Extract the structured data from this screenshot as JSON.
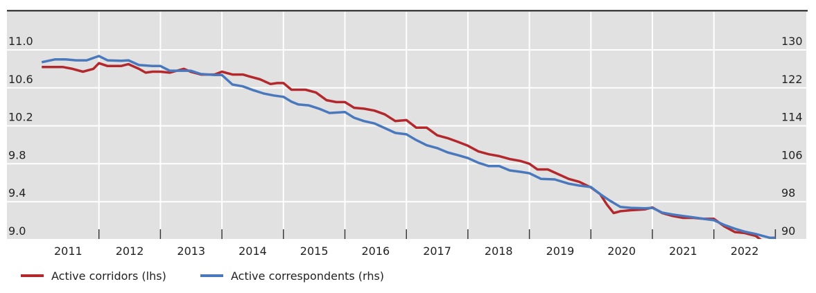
{
  "chart_data": {
    "type": "line",
    "title": "",
    "xlabel": "",
    "ylabel_left": "",
    "ylabel_right": "",
    "x_ticks": [
      "2011",
      "2012",
      "2013",
      "2014",
      "2015",
      "2016",
      "2017",
      "2018",
      "2019",
      "2020",
      "2021",
      "2022"
    ],
    "x_range": [
      2011.0,
      2023.0
    ],
    "y_left": {
      "ticks": [
        "9.0",
        "9.4",
        "9.8",
        "10.2",
        "10.6",
        "11.0"
      ],
      "range": [
        9.0,
        11.2
      ]
    },
    "y_right": {
      "ticks": [
        "90",
        "98",
        "106",
        "114",
        "122",
        "130"
      ],
      "range": [
        90,
        132
      ]
    },
    "grid": true,
    "legend_placement": "bottom",
    "colors": {
      "background": "#e1e1e1",
      "grid": "#ffffff",
      "corridors": "#b3282d",
      "correspondents": "#4a78bd"
    },
    "series": [
      {
        "name": "Active corridors (lhs)",
        "axis": "left",
        "points": [
          [
            2011.07,
            10.82
          ],
          [
            2011.26,
            10.82
          ],
          [
            2011.41,
            10.82
          ],
          [
            2011.57,
            10.8
          ],
          [
            2011.74,
            10.77
          ],
          [
            2011.91,
            10.8
          ],
          [
            2012.0,
            10.86
          ],
          [
            2012.14,
            10.83
          ],
          [
            2012.36,
            10.83
          ],
          [
            2012.48,
            10.85
          ],
          [
            2012.65,
            10.8
          ],
          [
            2012.76,
            10.76
          ],
          [
            2012.87,
            10.77
          ],
          [
            2013.0,
            10.77
          ],
          [
            2013.15,
            10.76
          ],
          [
            2013.38,
            10.8
          ],
          [
            2013.49,
            10.77
          ],
          [
            2013.66,
            10.74
          ],
          [
            2013.88,
            10.74
          ],
          [
            2014.0,
            10.77
          ],
          [
            2014.17,
            10.74
          ],
          [
            2014.34,
            10.74
          ],
          [
            2014.45,
            10.72
          ],
          [
            2014.62,
            10.69
          ],
          [
            2014.79,
            10.64
          ],
          [
            2014.9,
            10.65
          ],
          [
            2015.0,
            10.65
          ],
          [
            2015.13,
            10.58
          ],
          [
            2015.36,
            10.58
          ],
          [
            2015.53,
            10.55
          ],
          [
            2015.7,
            10.47
          ],
          [
            2015.86,
            10.45
          ],
          [
            2016.0,
            10.45
          ],
          [
            2016.15,
            10.39
          ],
          [
            2016.31,
            10.38
          ],
          [
            2016.48,
            10.36
          ],
          [
            2016.65,
            10.32
          ],
          [
            2016.82,
            10.25
          ],
          [
            2017.0,
            10.26
          ],
          [
            2017.16,
            10.18
          ],
          [
            2017.33,
            10.18
          ],
          [
            2017.5,
            10.1
          ],
          [
            2017.67,
            10.07
          ],
          [
            2017.84,
            10.03
          ],
          [
            2018.0,
            9.99
          ],
          [
            2018.17,
            9.93
          ],
          [
            2018.34,
            9.9
          ],
          [
            2018.51,
            9.88
          ],
          [
            2018.68,
            9.85
          ],
          [
            2018.85,
            9.83
          ],
          [
            2019.0,
            9.8
          ],
          [
            2019.13,
            9.74
          ],
          [
            2019.3,
            9.74
          ],
          [
            2019.47,
            9.69
          ],
          [
            2019.64,
            9.64
          ],
          [
            2019.81,
            9.61
          ],
          [
            2020.0,
            9.55
          ],
          [
            2020.15,
            9.48
          ],
          [
            2020.26,
            9.37
          ],
          [
            2020.37,
            9.28
          ],
          [
            2020.48,
            9.3
          ],
          [
            2020.65,
            9.31
          ],
          [
            2020.88,
            9.32
          ],
          [
            2021.0,
            9.34
          ],
          [
            2021.16,
            9.28
          ],
          [
            2021.33,
            9.25
          ],
          [
            2021.5,
            9.23
          ],
          [
            2021.67,
            9.23
          ],
          [
            2021.83,
            9.22
          ],
          [
            2022.0,
            9.22
          ],
          [
            2022.17,
            9.14
          ],
          [
            2022.34,
            9.08
          ],
          [
            2022.5,
            9.07
          ],
          [
            2022.68,
            9.04
          ],
          [
            2022.76,
            9.0
          ],
          [
            2022.85,
            8.96
          ]
        ]
      },
      {
        "name": "Active correspondents (rhs)",
        "axis": "right",
        "points": [
          [
            2011.07,
            127.4
          ],
          [
            2011.29,
            128.0
          ],
          [
            2011.46,
            128.0
          ],
          [
            2011.63,
            127.8
          ],
          [
            2011.8,
            127.8
          ],
          [
            2012.0,
            128.7
          ],
          [
            2012.14,
            127.8
          ],
          [
            2012.36,
            127.7
          ],
          [
            2012.48,
            127.8
          ],
          [
            2012.65,
            126.8
          ],
          [
            2012.87,
            126.6
          ],
          [
            2013.0,
            126.6
          ],
          [
            2013.15,
            125.6
          ],
          [
            2013.38,
            125.6
          ],
          [
            2013.49,
            125.6
          ],
          [
            2013.66,
            124.9
          ],
          [
            2013.88,
            124.7
          ],
          [
            2014.0,
            124.7
          ],
          [
            2014.17,
            122.7
          ],
          [
            2014.34,
            122.3
          ],
          [
            2014.51,
            121.5
          ],
          [
            2014.68,
            120.8
          ],
          [
            2014.84,
            120.4
          ],
          [
            2015.0,
            120.1
          ],
          [
            2015.13,
            119.1
          ],
          [
            2015.24,
            118.5
          ],
          [
            2015.41,
            118.3
          ],
          [
            2015.58,
            117.6
          ],
          [
            2015.75,
            116.7
          ],
          [
            2016.0,
            116.9
          ],
          [
            2016.15,
            115.7
          ],
          [
            2016.31,
            115.0
          ],
          [
            2016.48,
            114.5
          ],
          [
            2016.65,
            113.5
          ],
          [
            2016.82,
            112.5
          ],
          [
            2017.0,
            112.2
          ],
          [
            2017.16,
            111.0
          ],
          [
            2017.33,
            109.9
          ],
          [
            2017.5,
            109.3
          ],
          [
            2017.67,
            108.4
          ],
          [
            2017.84,
            107.8
          ],
          [
            2018.0,
            107.2
          ],
          [
            2018.17,
            106.2
          ],
          [
            2018.34,
            105.5
          ],
          [
            2018.51,
            105.5
          ],
          [
            2018.68,
            104.6
          ],
          [
            2018.85,
            104.3
          ],
          [
            2019.0,
            104.0
          ],
          [
            2019.19,
            102.8
          ],
          [
            2019.41,
            102.7
          ],
          [
            2019.64,
            101.8
          ],
          [
            2019.81,
            101.4
          ],
          [
            2020.0,
            101.1
          ],
          [
            2020.15,
            99.6
          ],
          [
            2020.31,
            98.2
          ],
          [
            2020.48,
            96.9
          ],
          [
            2020.65,
            96.7
          ],
          [
            2020.88,
            96.6
          ],
          [
            2021.0,
            96.7
          ],
          [
            2021.16,
            95.7
          ],
          [
            2021.33,
            95.3
          ],
          [
            2021.5,
            95.0
          ],
          [
            2021.67,
            94.7
          ],
          [
            2021.83,
            94.4
          ],
          [
            2022.0,
            94.1
          ],
          [
            2022.17,
            93.1
          ],
          [
            2022.34,
            92.3
          ],
          [
            2022.5,
            91.7
          ],
          [
            2022.68,
            91.2
          ],
          [
            2022.91,
            90.4
          ],
          [
            2023.0,
            90.4
          ]
        ]
      }
    ]
  }
}
